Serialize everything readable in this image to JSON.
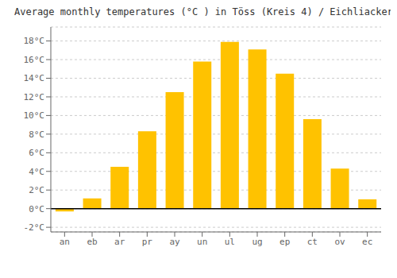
{
  "chart_data": {
    "type": "bar",
    "title": "Average monthly temperatures (°C ) in Töss (Kreis 4) / Eichliacker",
    "categories": [
      "an",
      "eb",
      "ar",
      "pr",
      "ay",
      "un",
      "ul",
      "ug",
      "ep",
      "ct",
      "ov",
      "ec"
    ],
    "values": [
      -0.3,
      1.1,
      4.5,
      8.3,
      12.5,
      15.8,
      17.9,
      17.1,
      14.5,
      9.6,
      4.3,
      1.0
    ],
    "color": "#FFC200",
    "ylim": [
      -2.5,
      19.5
    ],
    "yticks": [
      {
        "value": -2,
        "label": "-2°C"
      },
      {
        "value": 0,
        "label": "0°C"
      },
      {
        "value": 2,
        "label": "2°C"
      },
      {
        "value": 4,
        "label": "4°C"
      },
      {
        "value": 6,
        "label": "6°C"
      },
      {
        "value": 8,
        "label": "8°C"
      },
      {
        "value": 10,
        "label": "10°C"
      },
      {
        "value": 12,
        "label": "12°C"
      },
      {
        "value": 14,
        "label": "14°C"
      },
      {
        "value": 16,
        "label": "16°C"
      },
      {
        "value": 18,
        "label": "18°C"
      }
    ],
    "grid": true
  }
}
